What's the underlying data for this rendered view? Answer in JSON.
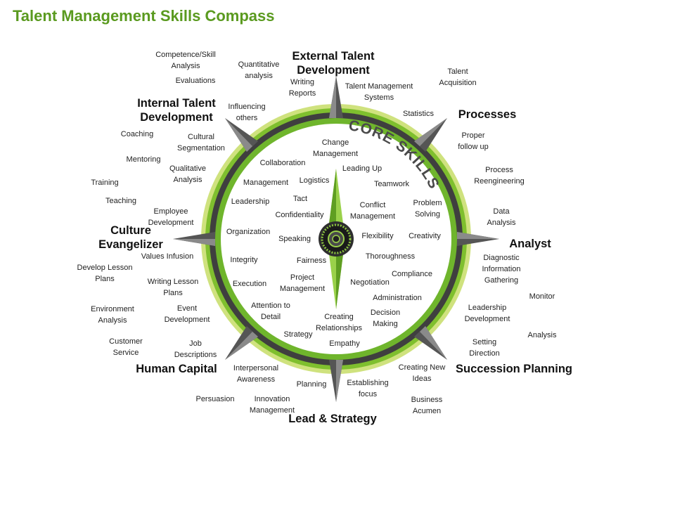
{
  "title": "Talent Management Skills Compass",
  "core_label": "CORE SKILLS",
  "colors": {
    "title": "#5a9a1f",
    "ring_green": "#6fb52c",
    "ring_dark": "#3e3e3e",
    "needle": "#6ab023"
  },
  "categories": {
    "external": "External Talent Development",
    "internal": "Internal Talent Development",
    "processes": "Processes",
    "culture": "Culture Evangelizer",
    "analyst": "Analyst",
    "human_capital": "Human Capital",
    "succession": "Succession Planning",
    "lead": "Lead & Strategy"
  },
  "outer_skills": {
    "competence": "Competence/Skill Analysis",
    "evaluations": "Evaluations",
    "quantitative": "Quantitative analysis",
    "writing_reports": "Writing Reports",
    "tm_systems": "Talent Management Systems",
    "talent_acquisition": "Talent Acquisition",
    "influencing": "Influencing others",
    "statistics": "Statistics",
    "coaching": "Coaching",
    "cultural_seg": "Cultural Segmentation",
    "proper_follow": "Proper follow up",
    "mentoring": "Mentoring",
    "qualitative": "Qualitative Analysis",
    "process_reeng": "Process Reengineering",
    "training": "Training",
    "teaching": "Teaching",
    "employee_dev": "Employee Development",
    "data_analysis": "Data Analysis",
    "values_infusion": "Values Infusion",
    "diagnostic": "Diagnostic Information Gathering",
    "develop_lesson": "Develop Lesson Plans",
    "writing_lesson": "Writing Lesson Plans",
    "monitor": "Monitor",
    "environment": "Environment Analysis",
    "event_dev": "Event Development",
    "leadership_dev": "Leadership Development",
    "analysis": "Analysis",
    "customer_service": "Customer Service",
    "job_desc": "Job Descriptions",
    "setting_direction": "Setting Direction",
    "interpersonal": "Interpersonal Awareness",
    "creating_ideas": "Creating New Ideas",
    "planning": "Planning",
    "establishing_focus": "Establishing focus",
    "persuasion": "Persuasion",
    "innovation": "Innovation Management",
    "business_acumen": "Business Acumen"
  },
  "core_skills": {
    "change_mgmt": "Change Management",
    "collaboration": "Collaboration",
    "leading_up": "Leading Up",
    "management": "Management",
    "logistics": "Logistics",
    "teamwork": "Teamwork",
    "tact": "Tact",
    "leadership": "Leadership",
    "confidentiality": "Confidentiality",
    "conflict_mgmt": "Conflict Management",
    "problem_solving": "Problem Solving",
    "organization": "Organization",
    "speaking": "Speaking",
    "flexibility": "Flexibility",
    "creativity": "Creativity",
    "thoroughness": "Thoroughness",
    "integrity": "Integrity",
    "fairness": "Fairness",
    "compliance": "Compliance",
    "project_mgmt": "Project Management",
    "execution": "Execution",
    "negotiation": "Negotiation",
    "administration": "Administration",
    "attention": "Attention to Detail",
    "decision": "Decision Making",
    "creating_rel": "Creating Relationships",
    "strategy": "Strategy",
    "empathy": "Empathy"
  }
}
